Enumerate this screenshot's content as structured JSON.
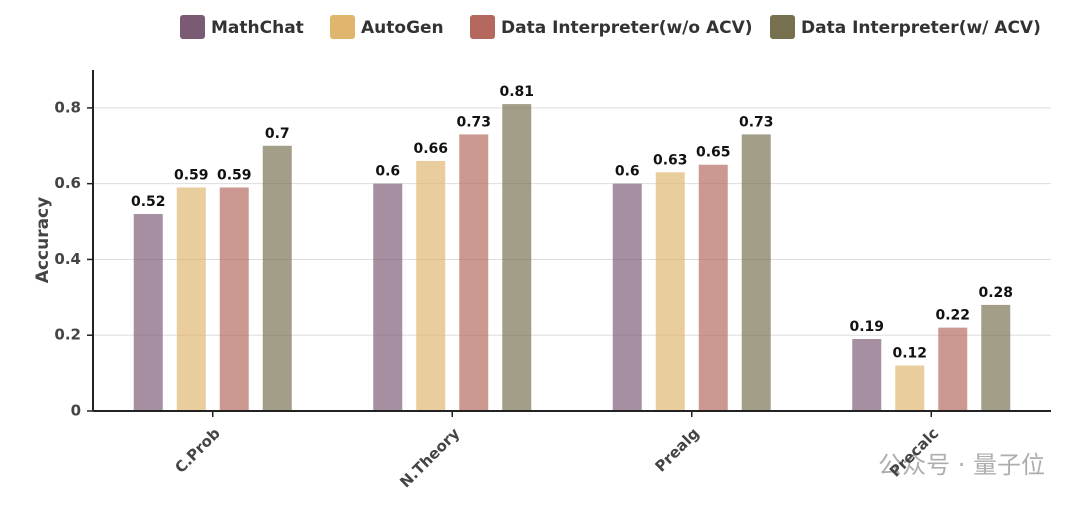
{
  "chart_data": {
    "type": "bar",
    "categories": [
      "C.Prob",
      "N.Theory",
      "Prealg",
      "Precalc"
    ],
    "series": [
      {
        "name": "MathChat",
        "color": "#7b5a73",
        "values": [
          0.52,
          0.6,
          0.6,
          0.19
        ]
      },
      {
        "name": "AutoGen",
        "color": "#e0b56e",
        "values": [
          0.59,
          0.66,
          0.63,
          0.12
        ]
      },
      {
        "name": "Data Interpreter(w/o ACV)",
        "color": "#b4685e",
        "values": [
          0.59,
          0.73,
          0.65,
          0.22
        ]
      },
      {
        "name": "Data Interpreter(w/ ACV)",
        "color": "#77704f",
        "values": [
          0.7,
          0.81,
          0.73,
          0.28
        ]
      }
    ],
    "ylabel": "Accuracy",
    "ylim": [
      0,
      0.9
    ],
    "yticks": [
      0,
      0.2,
      0.4,
      0.6,
      0.8
    ],
    "grid": true,
    "legend": "top",
    "watermark": "公众号 · 量子位"
  }
}
